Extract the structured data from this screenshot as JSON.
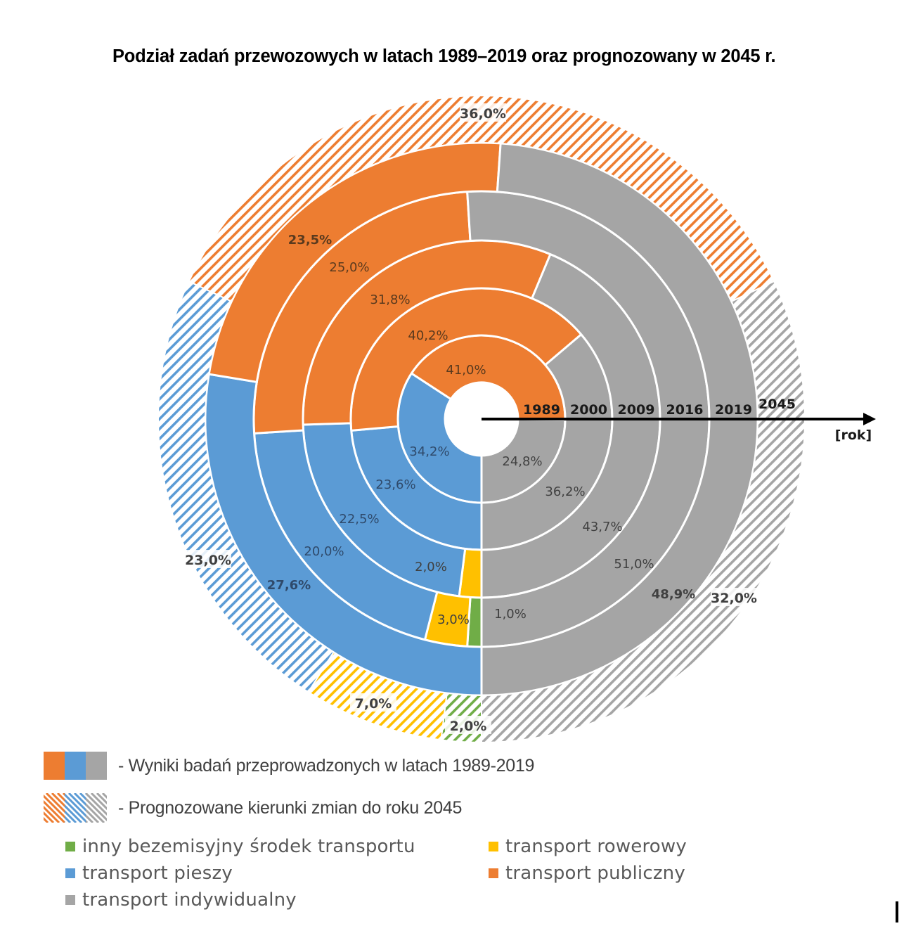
{
  "chart_data": {
    "type": "pie",
    "subtype": "multi-ring-donut",
    "title": "Podział zadań przewozowych w latach 1989–2019 oraz prognozowany w 2045 r.",
    "axis_label": "[rok]",
    "rings": [
      "1989",
      "2000",
      "2009",
      "2016",
      "2019",
      "2045"
    ],
    "categories": [
      {
        "key": "individual",
        "name": "transport indywidualny",
        "color": "#a5a5a5"
      },
      {
        "key": "public",
        "name": "transport publiczny",
        "color": "#ed7d31"
      },
      {
        "key": "pedestrian",
        "name": "transport pieszy",
        "color": "#5b9bd5"
      },
      {
        "key": "bicycle",
        "name": "transport rowerowy",
        "color": "#ffc000"
      },
      {
        "key": "other",
        "name": "inny bezemisyjny środek transportu",
        "color": "#70ad47"
      }
    ],
    "series": [
      {
        "year": "1989",
        "forecast": false,
        "values": {
          "individual": 24.8,
          "public": 41.0,
          "pedestrian": 34.2,
          "bicycle": 0,
          "other": 0
        },
        "labels": {
          "individual": "24,8%",
          "public": "41,0%",
          "pedestrian": "34,2%"
        }
      },
      {
        "year": "2000",
        "forecast": false,
        "values": {
          "individual": 36.2,
          "public": 40.2,
          "pedestrian": 23.6,
          "bicycle": 0,
          "other": 0
        },
        "labels": {
          "individual": "36,2%",
          "public": "40,2%",
          "pedestrian": "23,6%"
        }
      },
      {
        "year": "2009",
        "forecast": false,
        "values": {
          "individual": 43.7,
          "public": 31.8,
          "pedestrian": 22.5,
          "bicycle": 2.0,
          "other": 0
        },
        "labels": {
          "individual": "43,7%",
          "public": "31,8%",
          "pedestrian": "22,5%",
          "bicycle": "2,0%"
        }
      },
      {
        "year": "2016",
        "forecast": false,
        "values": {
          "individual": 51.0,
          "public": 25.0,
          "pedestrian": 20.0,
          "bicycle": 3.0,
          "other": 1.0
        },
        "labels": {
          "individual": "51,0%",
          "public": "25,0%",
          "pedestrian": "20,0%",
          "bicycle": "3,0%",
          "other": "1,0%"
        }
      },
      {
        "year": "2019",
        "forecast": false,
        "values": {
          "individual": 48.9,
          "public": 23.5,
          "pedestrian": 27.6,
          "bicycle": 0,
          "other": 0
        },
        "labels": {
          "individual": "48,9%",
          "public": "23,5%",
          "pedestrian": "27,6%"
        }
      },
      {
        "year": "2045",
        "forecast": true,
        "values": {
          "individual": 32.0,
          "public": 36.0,
          "pedestrian": 23.0,
          "bicycle": 7.0,
          "other": 2.0
        },
        "labels": {
          "individual": "32,0%",
          "public": "36,0%",
          "pedestrian": "23,0%",
          "bicycle": "7,0%",
          "other": "2,0%"
        }
      }
    ],
    "unit": "%"
  },
  "legend": {
    "solid_label": "- Wyniki badań przeprowadzonych w latach 1989-2019",
    "hatched_label": "- Prognozowane kierunki zmian do roku  2045",
    "items": [
      {
        "name": "inny bezemisyjny środek transportu",
        "color": "#70ad47"
      },
      {
        "name": "transport rowerowy",
        "color": "#ffc000"
      },
      {
        "name": "transport pieszy",
        "color": "#5b9bd5"
      },
      {
        "name": "transport publiczny",
        "color": "#ed7d31"
      },
      {
        "name": "transport indywidualny",
        "color": "#a5a5a5"
      }
    ]
  }
}
